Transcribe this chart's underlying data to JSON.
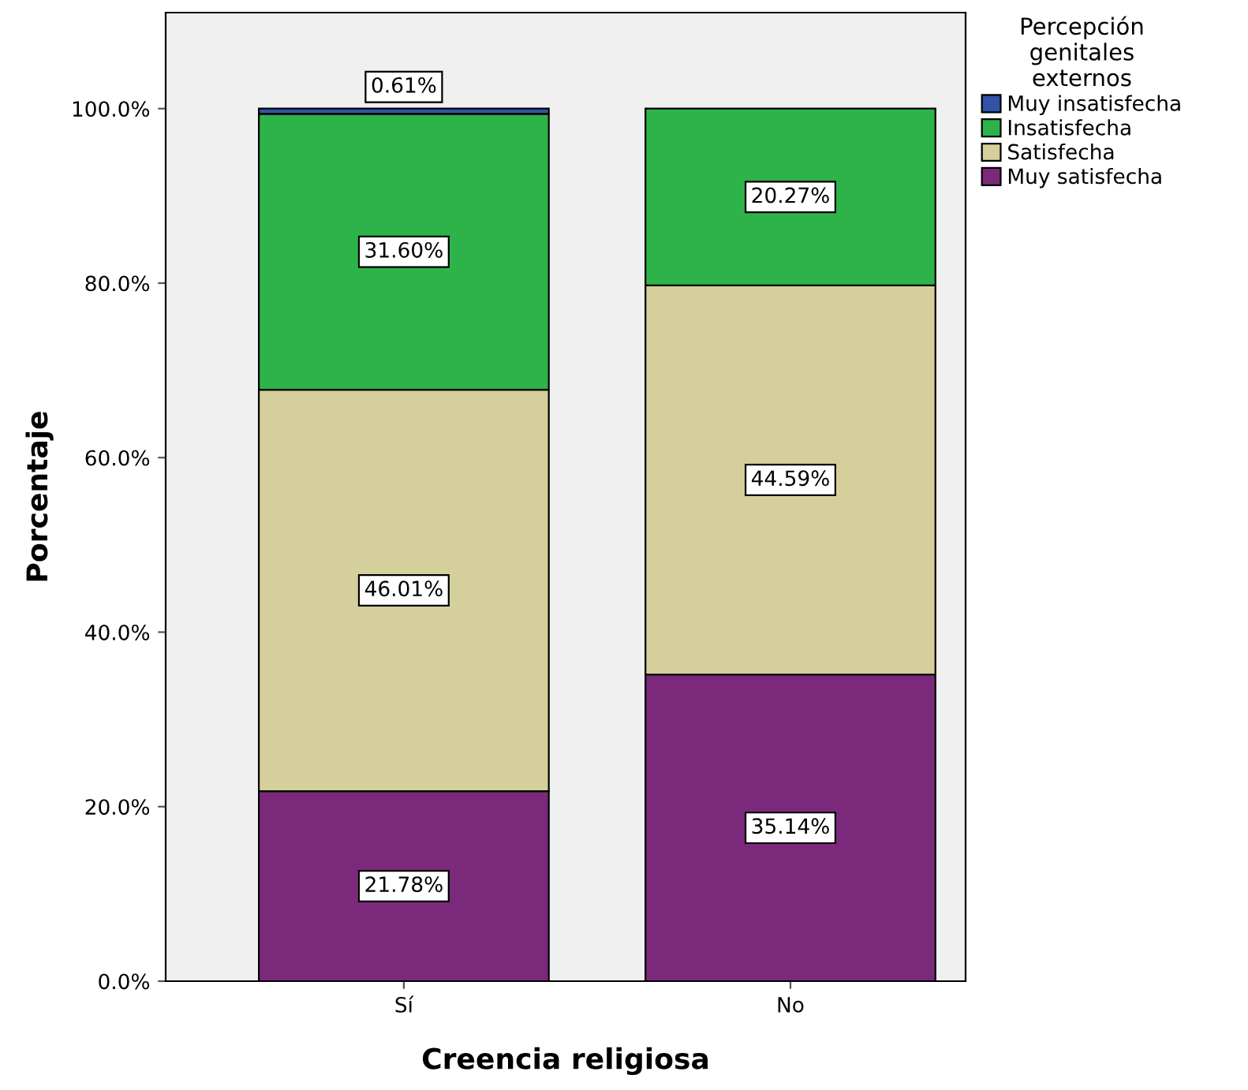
{
  "chart_data": {
    "type": "bar",
    "stacked": true,
    "xlabel": "Creencia religiosa",
    "ylabel": "Porcentaje",
    "legend_title": "Percepción\ngenitales\nexternos",
    "legend": "top right",
    "grid": false,
    "categories": [
      "Sí",
      "No"
    ],
    "ylim": [
      0,
      111
    ],
    "yticks": [
      {
        "value": 0,
        "label": "0.0%"
      },
      {
        "value": 20,
        "label": "20.0%"
      },
      {
        "value": 40,
        "label": "40.0%"
      },
      {
        "value": 60,
        "label": "60.0%"
      },
      {
        "value": 80,
        "label": "80.0%"
      },
      {
        "value": 100,
        "label": "100.0%"
      }
    ],
    "series": [
      {
        "name": "Muy satisfecha",
        "color": "#7b2a7b",
        "values": [
          21.78,
          35.14
        ],
        "value_labels": [
          "21.78%",
          "35.14%"
        ]
      },
      {
        "name": "Satisfecha",
        "color": "#d5cf9b",
        "values": [
          46.01,
          44.59
        ],
        "value_labels": [
          "46.01%",
          "44.59%"
        ]
      },
      {
        "name": "Insatisfecha",
        "color": "#2eb34b",
        "values": [
          31.6,
          20.27
        ],
        "value_labels": [
          "31.60%",
          "20.27%"
        ]
      },
      {
        "name": "Muy insatisfecha",
        "color": "#3353a8",
        "values": [
          0.61,
          null
        ],
        "value_labels": [
          "0.61%",
          null
        ]
      }
    ]
  }
}
